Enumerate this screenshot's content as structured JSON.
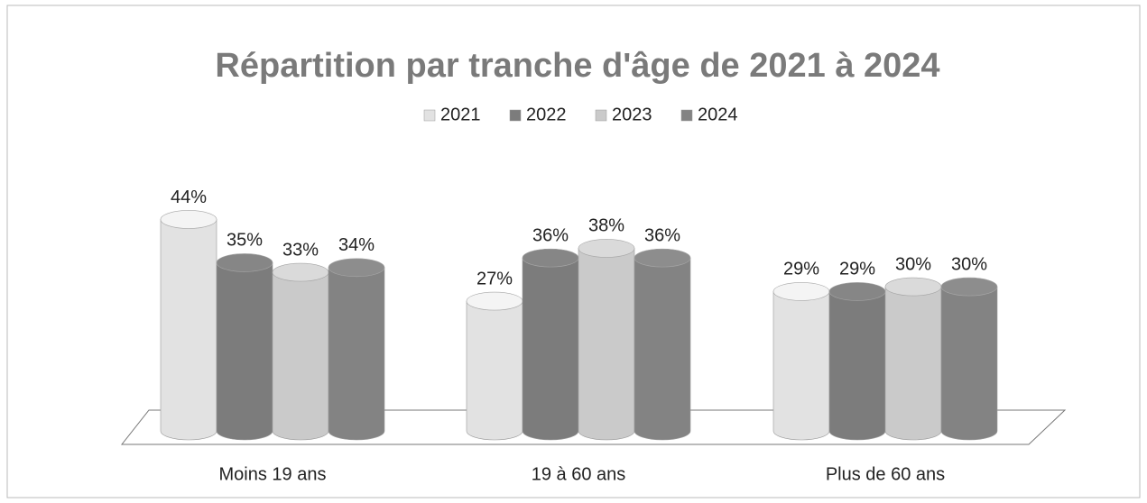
{
  "chart_data": {
    "type": "bar3d",
    "title": "Répartition par tranche d'âge de 2021 à 2024",
    "categories": [
      "Moins 19 ans",
      "19 à 60 ans",
      "Plus de 60 ans"
    ],
    "series": [
      {
        "name": "2021",
        "color": "#e2e2e2",
        "values": [
          44,
          27,
          29
        ],
        "value_labels": [
          "44%",
          "27%",
          "29%"
        ]
      },
      {
        "name": "2022",
        "color": "#7c7c7c",
        "values": [
          35,
          36,
          29
        ],
        "value_labels": [
          "35%",
          "36%",
          "29%"
        ]
      },
      {
        "name": "2023",
        "color": "#cacaca",
        "values": [
          33,
          38,
          30
        ],
        "value_labels": [
          "33%",
          "38%",
          "30%"
        ]
      },
      {
        "name": "2024",
        "color": "#838383",
        "values": [
          34,
          36,
          30
        ],
        "value_labels": [
          "34%",
          "36%",
          "30%"
        ]
      }
    ],
    "legend": "top"
  }
}
